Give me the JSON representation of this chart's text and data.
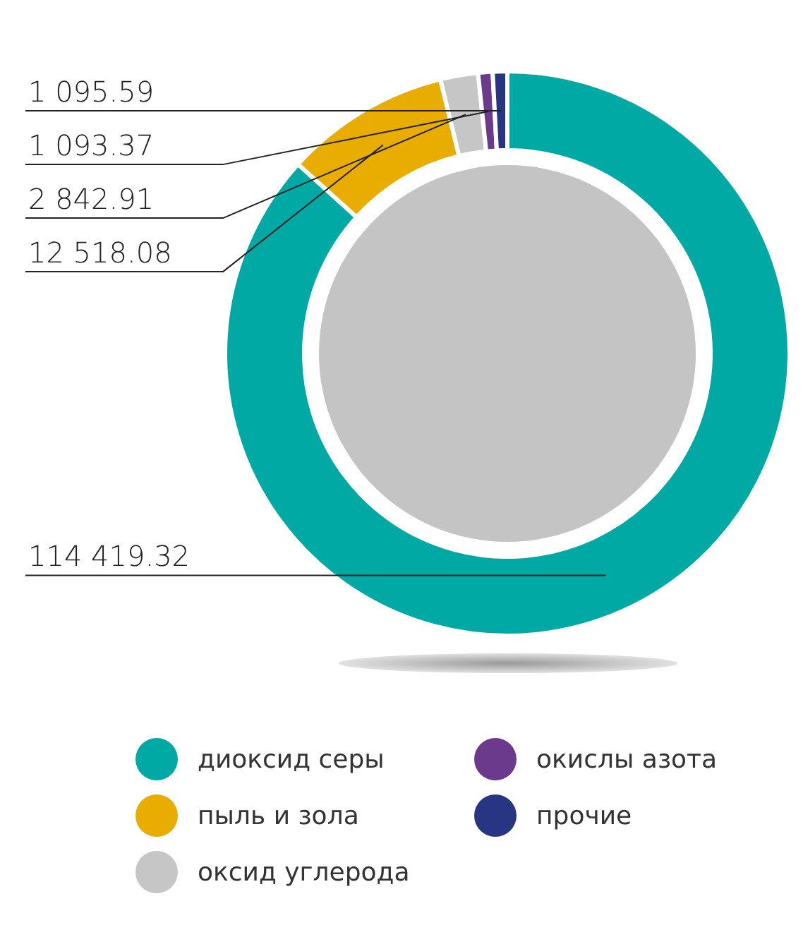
{
  "chart_data": {
    "type": "donut",
    "categories": [
      "диоксид серы",
      "пыль и зола",
      "оксид углерода",
      "окислы азота",
      "прочие"
    ],
    "values": [
      114419.32,
      12518.08,
      2842.91,
      1093.37,
      1095.59
    ],
    "colors": [
      "#00a9a4",
      "#e8ad00",
      "#c6c6c6",
      "#6b3a8c",
      "#283583"
    ],
    "data_labels": true,
    "legend": "bottom"
  }
}
